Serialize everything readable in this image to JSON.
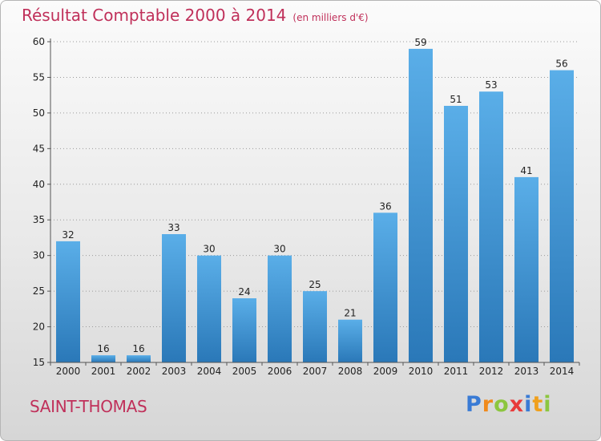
{
  "header": {
    "title": "Résultat Comptable 2000 à 2014",
    "unit": "(en milliers d'€)"
  },
  "footer": {
    "city": "SAINT-THOMAS",
    "logo_letters": [
      {
        "char": "P",
        "color": "#3a7bd5"
      },
      {
        "char": "r",
        "color": "#f08a1c"
      },
      {
        "char": "o",
        "color": "#8cc63f"
      },
      {
        "char": "x",
        "color": "#e83a3a"
      },
      {
        "char": "i",
        "color": "#3a7bd5"
      },
      {
        "char": "t",
        "color": "#f0a01c"
      },
      {
        "char": "i",
        "color": "#8cc63f"
      }
    ]
  },
  "chart_data": {
    "type": "bar",
    "title": "Résultat Comptable 2000 à 2014",
    "subtitle": "(en milliers d'€)",
    "categories": [
      "2000",
      "2001",
      "2002",
      "2003",
      "2004",
      "2005",
      "2006",
      "2007",
      "2008",
      "2009",
      "2010",
      "2011",
      "2012",
      "2013",
      "2014"
    ],
    "values": [
      32,
      16,
      16,
      33,
      30,
      24,
      30,
      25,
      21,
      36,
      59,
      51,
      53,
      41,
      56
    ],
    "data_labels": [
      "32",
      "16",
      "16",
      "33",
      "30",
      "24",
      "30",
      "25",
      "21",
      "36",
      "59",
      "51",
      "53",
      "41",
      "56"
    ],
    "ylim": [
      15,
      60
    ],
    "yticks": [
      15,
      20,
      25,
      30,
      35,
      40,
      45,
      50,
      55,
      60
    ],
    "ytick_labels": [
      "15",
      "20",
      "25",
      "30",
      "35",
      "40",
      "45",
      "50",
      "55",
      "60"
    ],
    "grid": "horizontal dotted",
    "bar_color_top": "#5aaee8",
    "bar_color_bottom": "#2a78b8"
  }
}
